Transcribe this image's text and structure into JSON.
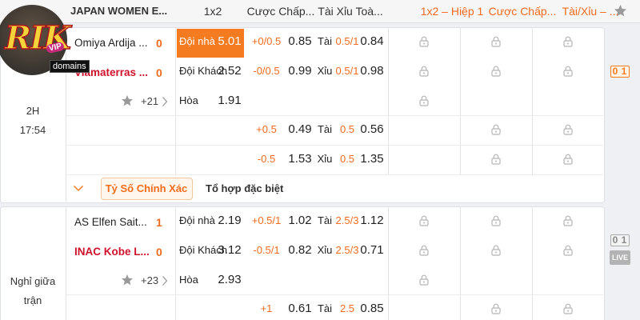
{
  "header": {
    "league": "JAPAN WOMEN E...",
    "cols": [
      "1x2",
      "Cược Chấp...",
      "Tài Xỉu Toà...",
      "1x2 – Hiệp 1",
      "Cược Chấp...",
      "Tài/Xỉu – ..."
    ]
  },
  "logo": {
    "brand": "RIK",
    "tag": "VIP",
    "sub": "domains"
  },
  "matches": [
    {
      "status": [
        "2H",
        "17:54"
      ],
      "teams": [
        {
          "name": "Omiya Ardija ...",
          "score": 0
        },
        {
          "name": "Viamaterras ...",
          "score": 0
        }
      ],
      "more": "+21",
      "score_box": [
        0,
        1
      ],
      "odds": [
        {
          "label": "Đội nhà",
          "price": 5.01,
          "hcp": "+0/0.5",
          "hcp_price": 0.85,
          "ou": "Tài",
          "ou_line": "0.5/1",
          "ou_price": 0.84
        },
        {
          "label": "Đội Khách",
          "price": 2.52,
          "hcp": "-0/0.5",
          "hcp_price": 0.99,
          "ou": "Xỉu",
          "ou_line": "0.5/1",
          "ou_price": 0.98
        },
        {
          "label": "Hòa",
          "price": 1.91
        },
        {
          "hcp": "+0.5",
          "hcp_price": 0.49,
          "ou": "Tài",
          "ou_line": 0.5,
          "ou_price": 0.56
        },
        {
          "hcp": "-0.5",
          "hcp_price": 1.53,
          "ou": "Xỉu",
          "ou_line": 0.5,
          "ou_price": 1.35
        }
      ],
      "tabs": [
        "Tỷ Số Chính Xác",
        "Tổ hợp đặc biệt"
      ]
    },
    {
      "status": [
        "Nghỉ giữa",
        "trận"
      ],
      "teams": [
        {
          "name": "AS Elfen Sait...",
          "score": 1
        },
        {
          "name": "INAC Kobe L...",
          "score": 0
        }
      ],
      "more": "+23",
      "score_box": [
        0,
        1
      ],
      "live": "LIVE",
      "odds": [
        {
          "label": "Đội nhà",
          "price": 2.19,
          "hcp": "+0.5/1",
          "hcp_price": 1.02,
          "ou": "Tài",
          "ou_line": "2.5/3",
          "ou_price": 1.12
        },
        {
          "label": "Đội Khách",
          "price": 3.12,
          "hcp": "-0.5/1",
          "hcp_price": 0.82,
          "ou": "Xỉu",
          "ou_line": "2.5/3",
          "ou_price": 0.71
        },
        {
          "label": "Hòa",
          "price": 2.93
        },
        {
          "hcp": "+1",
          "hcp_price": 0.61,
          "ou": "Tài",
          "ou_line": 2.5,
          "ou_price": 0.85
        }
      ]
    }
  ]
}
